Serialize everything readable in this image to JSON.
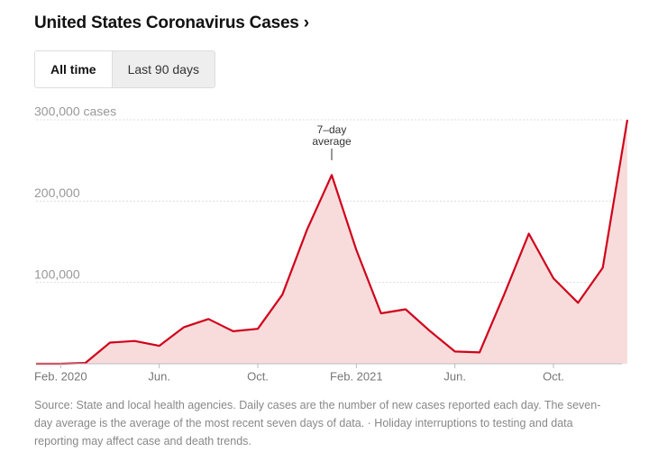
{
  "header": {
    "title": "United States Coronavirus Cases ›",
    "tabs": [
      "All time",
      "Last 90 days"
    ]
  },
  "chart_data": {
    "type": "area",
    "x": [
      "2020-01",
      "2020-02",
      "2020-03",
      "2020-04",
      "2020-05",
      "2020-06",
      "2020-07",
      "2020-08",
      "2020-09",
      "2020-10",
      "2020-11",
      "2020-12",
      "2021-01",
      "2021-02",
      "2021-03",
      "2021-04",
      "2021-05",
      "2021-06",
      "2021-07",
      "2021-08",
      "2021-09",
      "2021-10",
      "2021-11",
      "2021-12",
      "2022-01"
    ],
    "series": [
      {
        "name": "7–day average",
        "color": "#d0021b",
        "fill": "#f8dcdc",
        "values": [
          0,
          0,
          1000,
          26000,
          28000,
          22000,
          45000,
          55000,
          40000,
          43000,
          85000,
          165000,
          232000,
          140000,
          62000,
          67000,
          40000,
          15000,
          14000,
          85000,
          160000,
          105000,
          75000,
          118000,
          300000
        ]
      }
    ],
    "annotation": {
      "text": "7–day average",
      "x": "2021-01"
    },
    "xlim": [
      "2020-01",
      "2022-01"
    ],
    "xticks": [
      {
        "value": "2020-02",
        "label": "Feb. 2020"
      },
      {
        "value": "2020-06",
        "label": "Jun."
      },
      {
        "value": "2020-10",
        "label": "Oct."
      },
      {
        "value": "2021-02",
        "label": "Feb. 2021"
      },
      {
        "value": "2021-06",
        "label": "Jun."
      },
      {
        "value": "2021-10",
        "label": "Oct."
      }
    ],
    "ylim": [
      0,
      300000
    ],
    "yticks": [
      {
        "value": 100000,
        "label": "100,000"
      },
      {
        "value": 200000,
        "label": "200,000"
      },
      {
        "value": 300000,
        "label": "300,000 cases"
      }
    ],
    "grid": true
  },
  "footer": {
    "note": "Source: State and local health agencies. Daily cases are the number of new cases reported each day. The seven-day average is the average of the most recent seven days of data.  ·  Holiday interruptions to testing and data reporting may affect case and death trends."
  }
}
